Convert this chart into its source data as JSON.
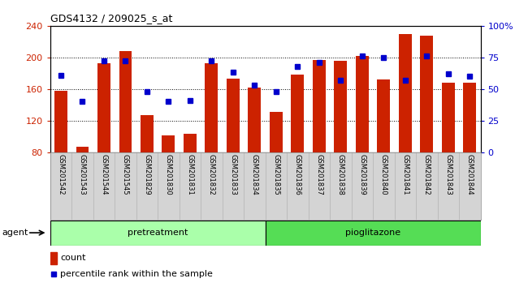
{
  "title": "GDS4132 / 209025_s_at",
  "samples": [
    "GSM201542",
    "GSM201543",
    "GSM201544",
    "GSM201545",
    "GSM201829",
    "GSM201830",
    "GSM201831",
    "GSM201832",
    "GSM201833",
    "GSM201834",
    "GSM201835",
    "GSM201836",
    "GSM201837",
    "GSM201838",
    "GSM201839",
    "GSM201840",
    "GSM201841",
    "GSM201842",
    "GSM201843",
    "GSM201844"
  ],
  "counts": [
    158,
    87,
    193,
    208,
    127,
    101,
    103,
    193,
    173,
    162,
    131,
    178,
    197,
    196,
    202,
    172,
    230,
    228,
    168,
    168
  ],
  "percentiles": [
    61,
    40,
    72,
    72,
    48,
    40,
    41,
    72,
    63,
    53,
    48,
    68,
    71,
    57,
    76,
    75,
    57,
    76,
    62,
    60
  ],
  "ylim_left": [
    80,
    240
  ],
  "ylim_right": [
    0,
    100
  ],
  "yticks_left": [
    80,
    120,
    160,
    200,
    240
  ],
  "yticks_right": [
    0,
    25,
    50,
    75,
    100
  ],
  "bar_color": "#cc2200",
  "marker_color": "#0000cc",
  "n_pretreatment": 10,
  "n_pioglitazone": 10,
  "pretreatment_color": "#aaffaa",
  "pioglitazone_color": "#55dd55",
  "agent_label": "agent",
  "legend_count_label": "count",
  "legend_percentile_label": "percentile rank within the sample",
  "xlabel_bg_color": "#d4d4d4",
  "background_color": "#ffffff"
}
